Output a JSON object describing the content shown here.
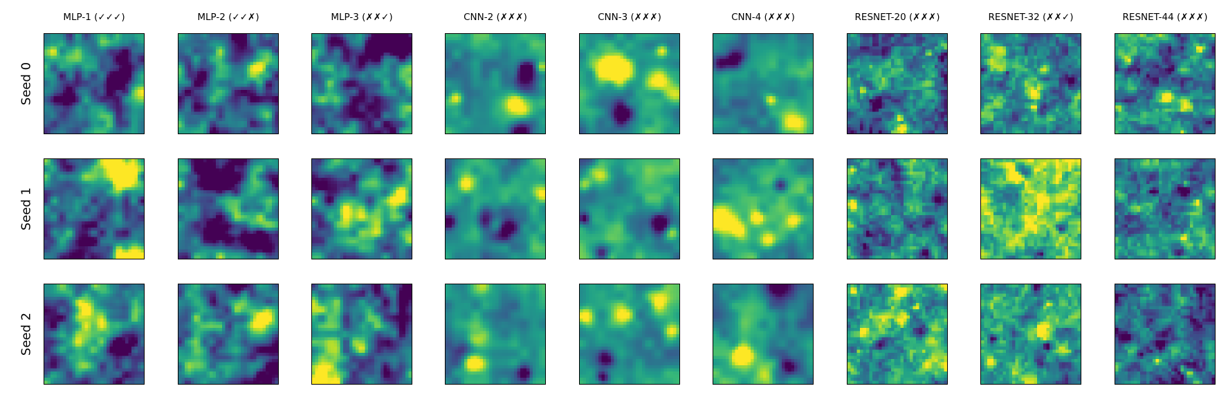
{
  "chart_data": {
    "type": "heatmap",
    "colormap": "viridis",
    "grid": false,
    "columns": [
      "MLP-1 (✓✓✓)",
      "MLP-2 (✓✓✗)",
      "MLP-3 (✗✗✓)",
      "CNN-2 (✗✗✗)",
      "CNN-3 (✗✗✗)",
      "CNN-4 (✗✗✗)",
      "RESNET-20 (✗✗✗)",
      "RESNET-32 (✗✗✓)",
      "RESNET-44 (✗✗✗)"
    ],
    "rows": [
      "Seed 0",
      "Seed 1",
      "Seed 2"
    ]
  }
}
